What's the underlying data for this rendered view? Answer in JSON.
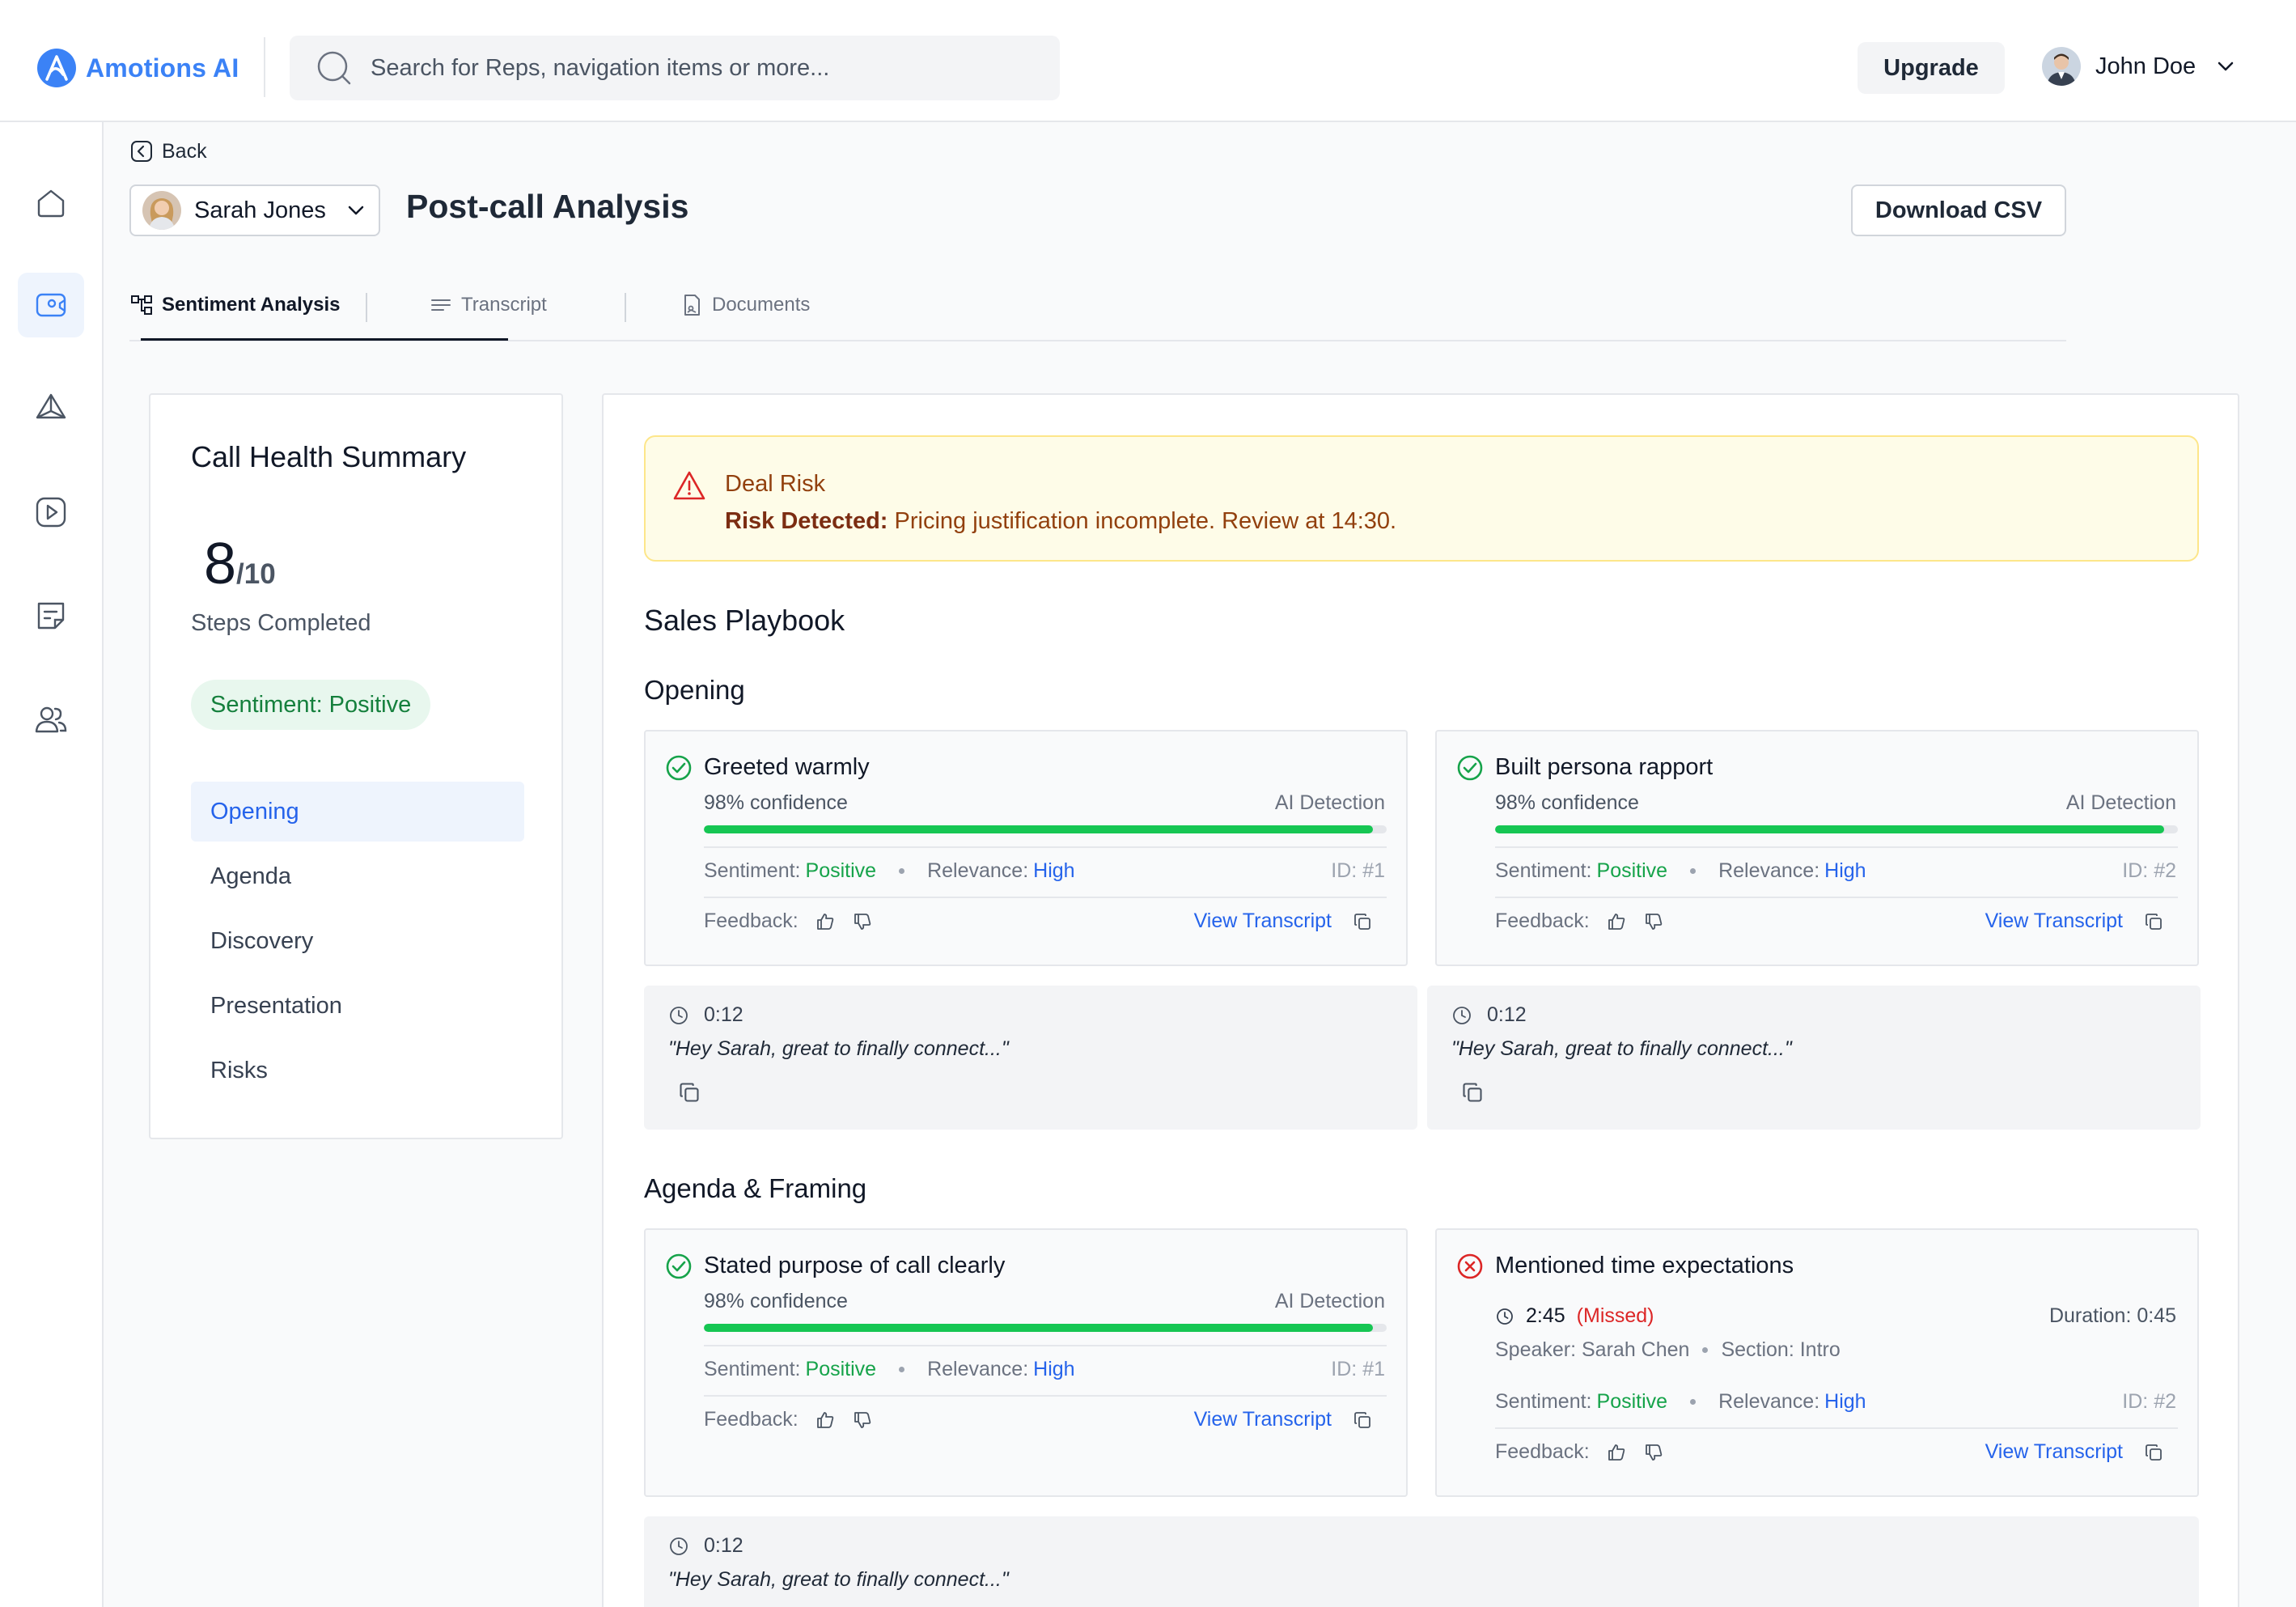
{
  "app": {
    "brand": "Amotions AI",
    "brand_color": "#3b82f6"
  },
  "header": {
    "search_placeholder": "Search for Reps, navigation items or more...",
    "upgrade_label": "Upgrade",
    "user_name": "John Doe"
  },
  "sidebar": {
    "items": [
      {
        "icon": "home-icon",
        "active": false
      },
      {
        "icon": "video-call-icon",
        "active": true
      },
      {
        "icon": "pyramid-icon",
        "active": false
      },
      {
        "icon": "play-icon",
        "active": false
      },
      {
        "icon": "document-icon",
        "active": false
      },
      {
        "icon": "users-icon",
        "active": false
      }
    ]
  },
  "page": {
    "back_label": "Back",
    "rep_name": "Sarah Jones",
    "title": "Post-call Analysis",
    "download_label": "Download CSV"
  },
  "tabs": [
    {
      "label": "Sentiment Analysis",
      "icon": "hierarchy-icon",
      "active": true
    },
    {
      "label": "Transcript",
      "icon": "lines-icon",
      "active": false
    },
    {
      "label": "Documents",
      "icon": "file-icon",
      "active": false
    }
  ],
  "health": {
    "title": "Call Health Summary",
    "score": "8",
    "score_total": "/10",
    "steps_label": "Steps Completed",
    "sentiment_pill": "Sentiment: Positive",
    "nav": [
      {
        "label": "Opening",
        "active": true
      },
      {
        "label": "Agenda",
        "active": false
      },
      {
        "label": "Discovery",
        "active": false
      },
      {
        "label": "Presentation",
        "active": false
      },
      {
        "label": "Risks",
        "active": false
      }
    ]
  },
  "risk": {
    "title": "Deal Risk",
    "label": "Risk Detected:",
    "text": "Pricing justification incomplete. Review at 14:30."
  },
  "playbook": {
    "title": "Sales Playbook",
    "labels": {
      "ai_detection": "AI Detection",
      "sentiment": "Sentiment:",
      "relevance": "Relevance:",
      "feedback": "Feedback:",
      "view_transcript": "View Transcript"
    },
    "sections": [
      {
        "title": "Opening",
        "steps": [
          {
            "title": "Greeted warmly",
            "status": "done",
            "confidence": "98% confidence",
            "confidence_value": 0.98,
            "sentiment": "Positive",
            "relevance": "High",
            "id": "ID: #1"
          },
          {
            "title": "Built persona rapport",
            "status": "done",
            "confidence": "98% confidence",
            "confidence_value": 0.98,
            "sentiment": "Positive",
            "relevance": "High",
            "id": "ID: #2"
          }
        ],
        "quotes": [
          {
            "time": "0:12",
            "text": "\"Hey Sarah, great to finally connect...\""
          },
          {
            "time": "0:12",
            "text": "\"Hey Sarah, great to finally connect...\""
          }
        ]
      },
      {
        "title": "Agenda & Framing",
        "steps": [
          {
            "title": "Stated purpose of call clearly",
            "status": "done",
            "confidence": "98% confidence",
            "confidence_value": 0.98,
            "sentiment": "Positive",
            "relevance": "High",
            "id": "ID: #1"
          },
          {
            "title": "Mentioned time expectations",
            "status": "missed",
            "time": "2:45",
            "missed_label": "(Missed)",
            "duration": "Duration: 0:45",
            "speaker": "Speaker: Sarah Chen",
            "section": "Section: Intro",
            "sentiment": "Positive",
            "relevance": "High",
            "id": "ID: #2"
          }
        ],
        "quotes": [
          {
            "time": "0:12",
            "text": "\"Hey Sarah, great to finally connect...\""
          }
        ]
      }
    ]
  },
  "colors": {
    "positive": "#16a34a",
    "link": "#2563eb",
    "missed": "#dc2626",
    "progress": "#16c653",
    "warning_bg": "#fefce8"
  }
}
